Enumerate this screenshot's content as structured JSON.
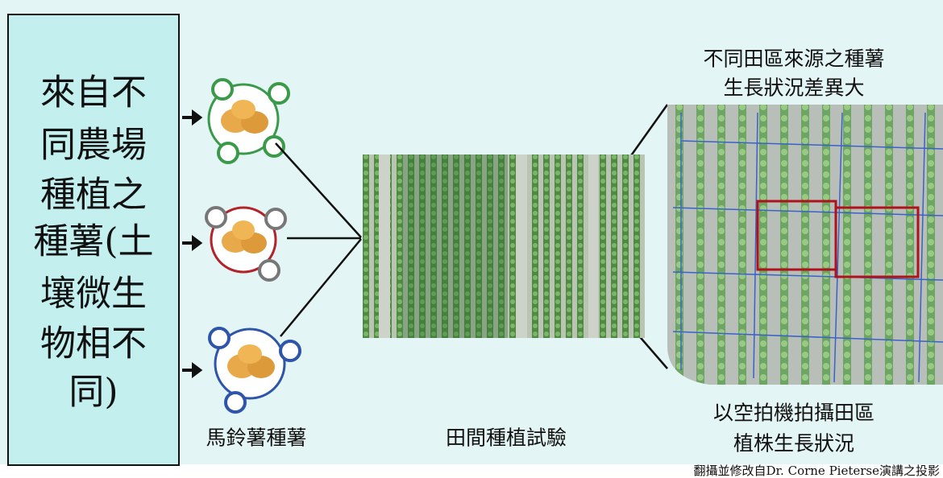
{
  "left_box": {
    "lines": [
      "來自不",
      "同農場",
      "種植之",
      "種薯(土",
      "壤微生",
      "物相不",
      "同)"
    ]
  },
  "labels": {
    "seed_potato": "馬鈴薯種薯",
    "field_trial": "田間種植試驗",
    "difference": [
      "不同田區來源之種薯",
      "生長狀況差異大"
    ],
    "drone": [
      "以空拍機拍攝田區",
      "植株生長狀況"
    ]
  },
  "caption": "翻攝並修改自Dr. Corne Pieterse演講之投影"
}
